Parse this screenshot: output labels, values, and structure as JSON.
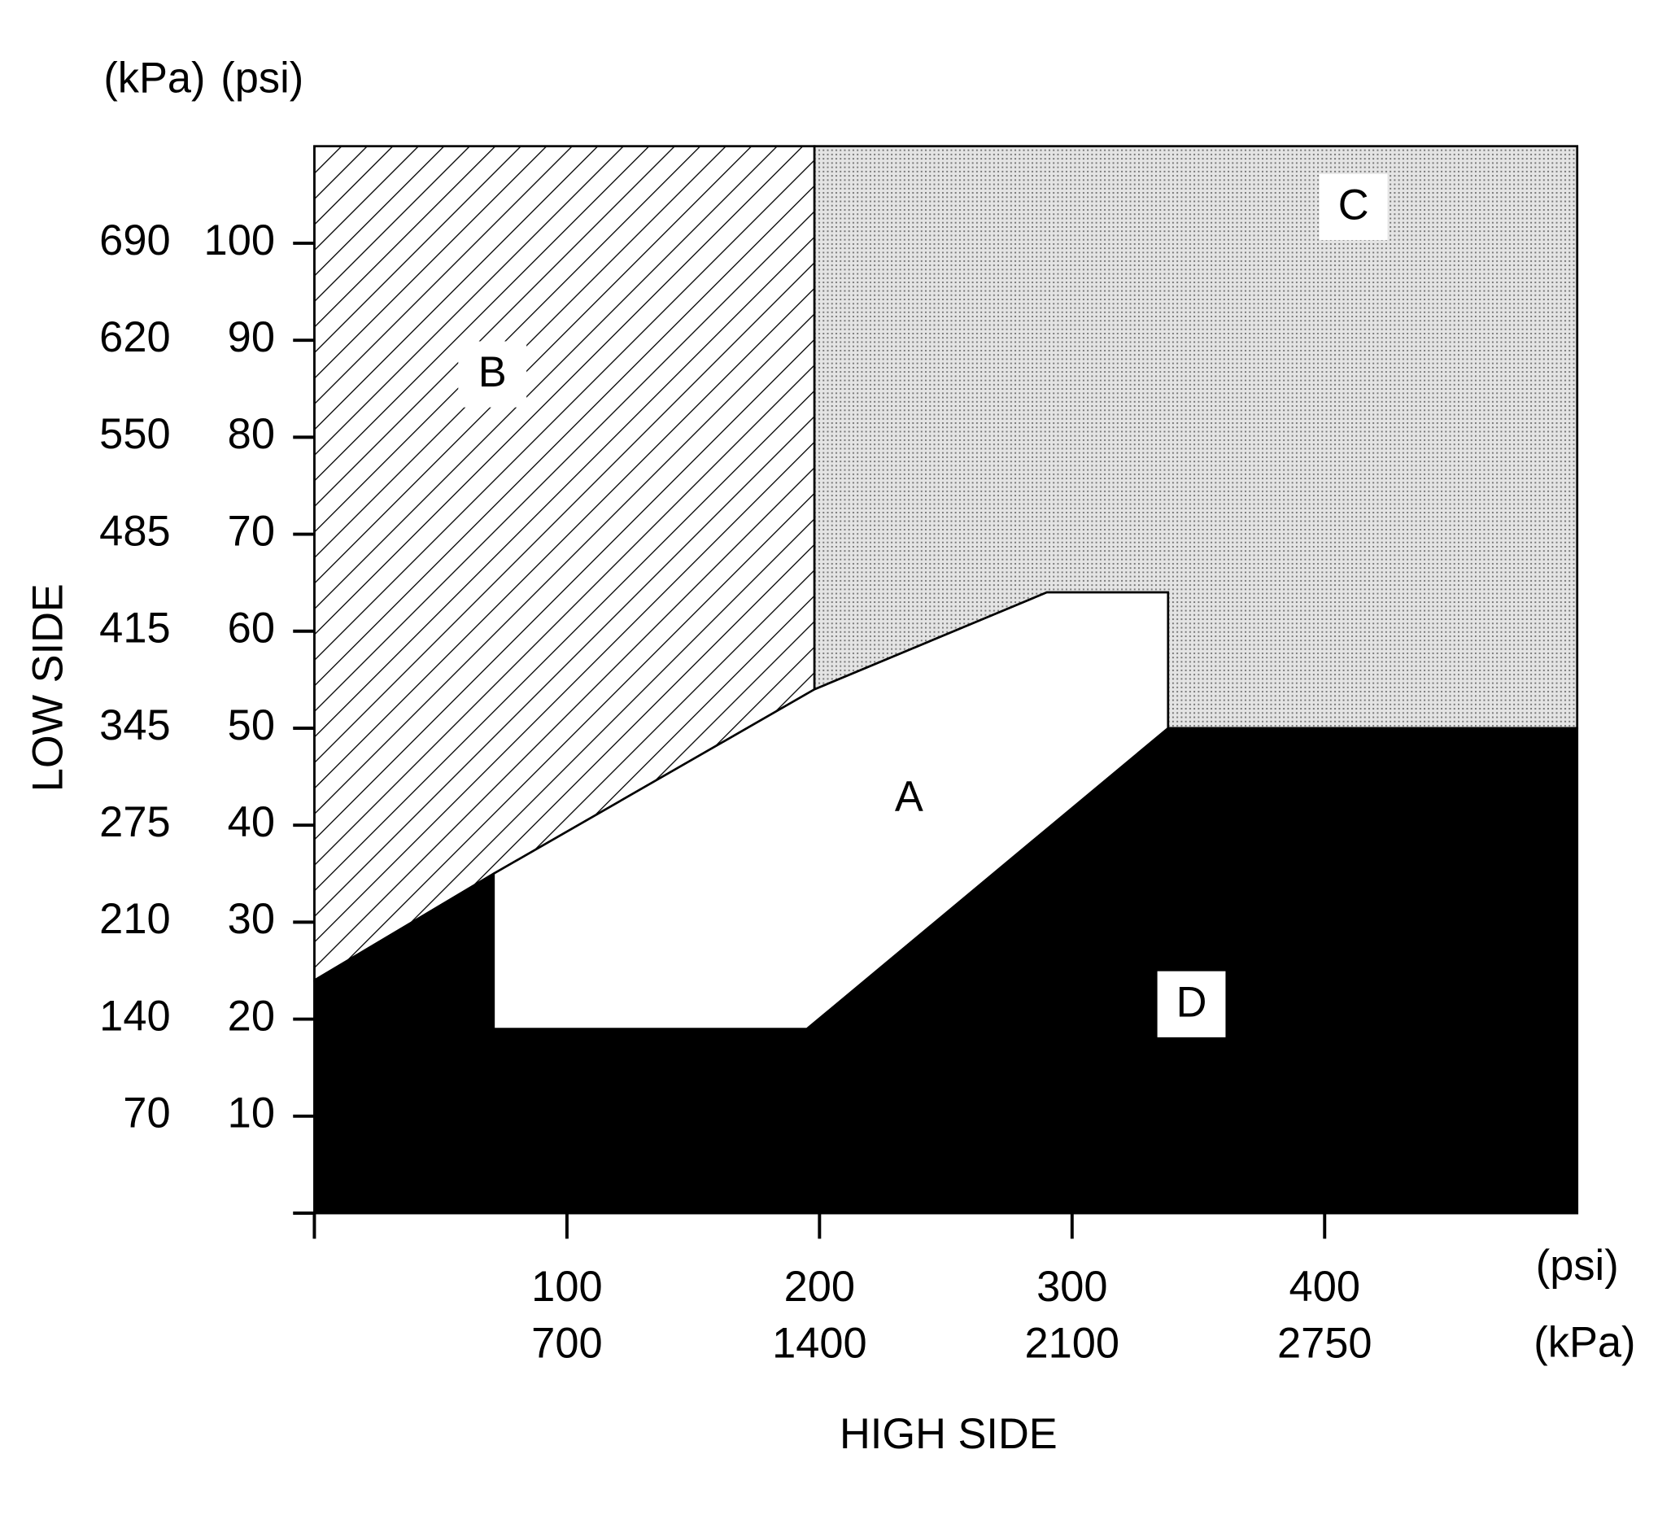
{
  "chart_data": {
    "type": "region",
    "x_label": "HIGH SIDE",
    "y_label": "LOW SIDE",
    "x_units": [
      "(psi)",
      "(kPa)"
    ],
    "y_units": [
      "(kPa)",
      "(psi)"
    ],
    "xlim": [
      0,
      500
    ],
    "ylim": [
      0,
      110
    ],
    "xticks": [
      {
        "value": 0,
        "label": null
      },
      100,
      200,
      300,
      400
    ],
    "x_kpa_labels": [
      null,
      "700",
      "1400",
      "2100",
      "2750"
    ],
    "yticks": [
      {
        "value": 0,
        "label": null
      },
      10,
      20,
      30,
      40,
      50,
      60,
      70,
      80,
      90,
      100
    ],
    "y_kpa_labels": [
      null,
      "70",
      "140",
      "210",
      "275",
      "345",
      "415",
      "485",
      "550",
      "620",
      "690"
    ],
    "regions": [
      {
        "name": "B",
        "fill": "hatch",
        "x": [
          0,
          198,
          198,
          71,
          0
        ],
        "y": [
          110,
          110,
          54,
          35,
          24
        ]
      },
      {
        "name": "C",
        "fill": "dots",
        "x": [
          198,
          500,
          500,
          338,
          338,
          290,
          198
        ],
        "y": [
          110,
          110,
          50,
          50,
          64,
          64,
          54
        ]
      },
      {
        "name": "D",
        "fill": "black",
        "x": [
          0,
          0,
          71,
          71,
          195,
          338,
          500,
          500
        ],
        "y": [
          0,
          24,
          35,
          19,
          19,
          50,
          50,
          0
        ]
      },
      {
        "name": "A",
        "fill": "white",
        "x": [
          71,
          71,
          198,
          290,
          338,
          338,
          195
        ],
        "y": [
          19,
          35,
          54,
          64,
          64,
          50,
          19
        ]
      }
    ]
  }
}
